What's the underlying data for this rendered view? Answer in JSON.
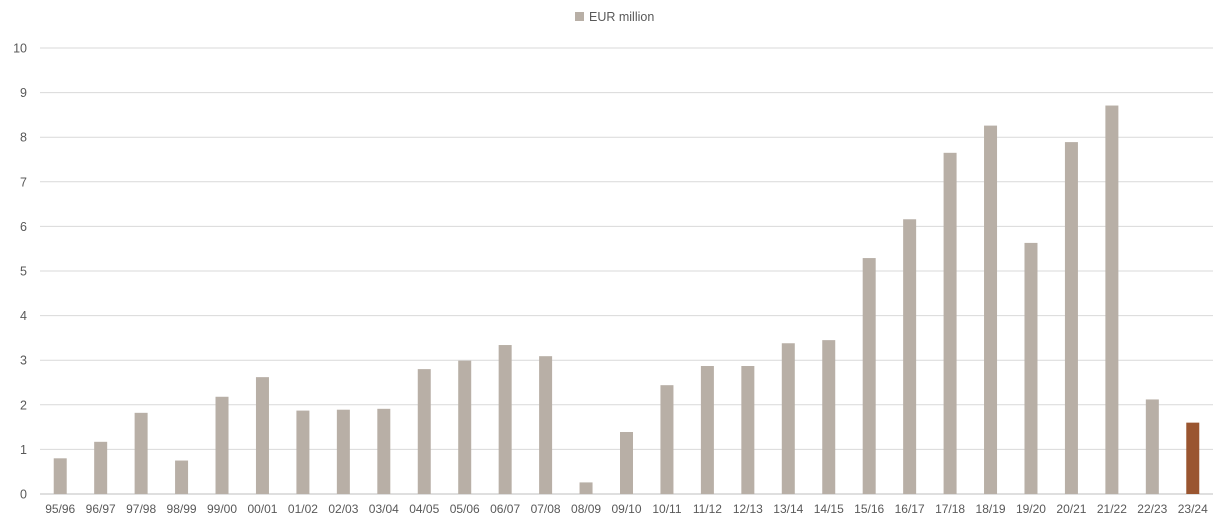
{
  "chart_data": {
    "type": "bar",
    "legend": {
      "label": "EUR million",
      "placement": "top"
    },
    "categories": [
      "95/96",
      "96/97",
      "97/98",
      "98/99",
      "99/00",
      "00/01",
      "01/02",
      "02/03",
      "03/04",
      "04/05",
      "05/06",
      "06/07",
      "07/08",
      "08/09",
      "09/10",
      "10/11",
      "11/12",
      "12/13",
      "13/14",
      "14/15",
      "15/16",
      "16/17",
      "17/18",
      "18/19",
      "19/20",
      "20/21",
      "21/22",
      "22/23",
      "23/24"
    ],
    "values": [
      0.8,
      1.17,
      1.82,
      0.75,
      2.18,
      2.62,
      1.87,
      1.89,
      1.91,
      2.8,
      2.99,
      3.34,
      3.09,
      0.26,
      1.39,
      2.44,
      2.87,
      2.87,
      3.38,
      3.45,
      5.29,
      6.16,
      7.65,
      8.26,
      5.63,
      7.89,
      8.71,
      2.12,
      1.6
    ],
    "bar_colors": {
      "default": "#b8afa6",
      "highlight": "#9a5530"
    },
    "highlight_index": 28,
    "ylim": [
      0,
      10
    ],
    "yticks": [
      0,
      1,
      2,
      3,
      4,
      5,
      6,
      7,
      8,
      9,
      10
    ],
    "grid": true,
    "gridline_color": "#d9d9d9",
    "xlabel": "",
    "ylabel": ""
  }
}
